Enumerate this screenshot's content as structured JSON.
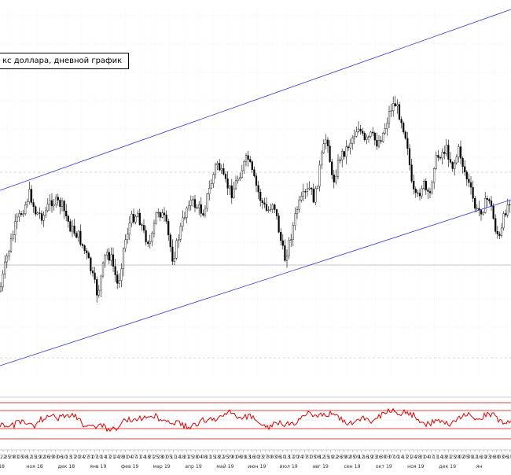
{
  "chart_data": [
    {
      "type": "candlestick",
      "title": "кс доллара, дневной график",
      "x": [],
      "ohlc_style": {
        "up_color": "#ffffff",
        "down_color": "#000000"
      },
      "trend_channel": {
        "color": "#3333dd",
        "lines": [
          "upper",
          "lower"
        ]
      },
      "grid": true
    },
    {
      "type": "line",
      "series": [
        {
          "values": []
        }
      ],
      "line_color": "#e00000",
      "threshold_lines_color": "#e00000"
    }
  ],
  "x_axis": {
    "day_ticks": [
      "22",
      "25",
      "29",
      "01",
      "05",
      "08",
      "12",
      "15",
      "19",
      "22",
      "26",
      "29",
      "03",
      "06",
      "10",
      "13",
      "17",
      "20",
      "24",
      "27",
      "31",
      "07",
      "10",
      "14",
      "17",
      "21",
      "24",
      "28",
      "31",
      "04",
      "07",
      "11",
      "14",
      "18",
      "21",
      "25",
      "28",
      "01",
      "05",
      "11",
      "14",
      "18",
      "21",
      "25",
      "28",
      "04",
      "08",
      "11",
      "15",
      "18",
      "22",
      "25",
      "29",
      "01",
      "06",
      "09",
      "13",
      "16",
      "20",
      "23",
      "27",
      "30",
      "03",
      "06",
      "10",
      "13",
      "17",
      "20",
      "24",
      "27",
      "31",
      "05",
      "08",
      "12",
      "15",
      "19",
      "22",
      "26",
      "29",
      "02",
      "05",
      "09",
      "12",
      "16",
      "19",
      "23",
      "26",
      "30",
      "03",
      "07",
      "10",
      "14",
      "17",
      "21",
      "24",
      "28",
      "31",
      "04",
      "07",
      "11",
      "14",
      "18",
      "21",
      "25",
      "28",
      "02",
      "05",
      "09",
      "12",
      "16",
      "19",
      "23",
      "26",
      "30",
      "03",
      "06",
      "10"
    ],
    "month_labels": [
      "18",
      "ноя 18",
      "дек 18",
      "янв 19",
      "фев 19",
      "мар 19",
      "апр 19",
      "май 19",
      "июн 19",
      "июл 19",
      "авг 19",
      "сен 19",
      "окт 19",
      "ноя 19",
      "дек 19",
      "ян"
    ]
  }
}
